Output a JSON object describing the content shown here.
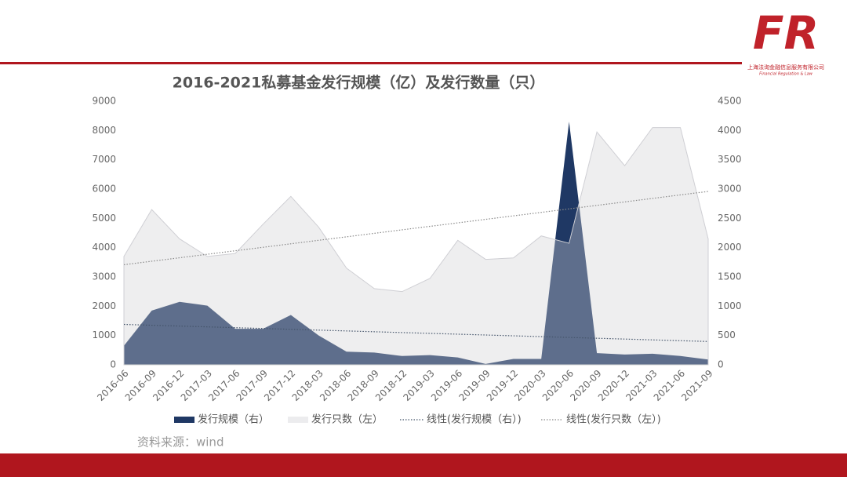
{
  "header": {
    "logo": "FR",
    "company": "上海法询金融信息服务有限公司",
    "company_en": "Financial Regulation & Law"
  },
  "chart_data": {
    "type": "area",
    "title": "2016-2021私募基金发行规模（亿）及发行数量（只）",
    "categories": [
      "2016-06",
      "2016-09",
      "2016-12",
      "2017-03",
      "2017-06",
      "2017-09",
      "2017-12",
      "2018-03",
      "2018-06",
      "2018-09",
      "2018-12",
      "2019-03",
      "2019-06",
      "2019-09",
      "2019-12",
      "2020-03",
      "2020-06",
      "2020-09",
      "2020-12",
      "2021-03",
      "2021-06",
      "2021-09"
    ],
    "series": [
      {
        "name": "发行规模（右）",
        "color": "#1f3864",
        "axis": "y2",
        "values": [
          325,
          925,
          1075,
          1010,
          615,
          615,
          850,
          500,
          225,
          210,
          150,
          165,
          125,
          15,
          100,
          100,
          4150,
          200,
          175,
          190,
          150,
          90
        ]
      },
      {
        "name": "发行只数（左）",
        "color": "#d0d0d4",
        "values": [
          3700,
          5300,
          4300,
          3700,
          3800,
          4800,
          5750,
          4700,
          3300,
          2600,
          2500,
          2950,
          4250,
          3600,
          3650,
          4400,
          4150,
          7950,
          6800,
          8100,
          8100,
          4300
        ]
      }
    ],
    "trend_names": [
      "线性(发行规模（右）)",
      "线性(发行只数（左）)"
    ],
    "ylim": [
      0,
      9000
    ],
    "yticks": [
      0,
      1000,
      2000,
      3000,
      4000,
      5000,
      6000,
      7000,
      8000,
      9000
    ],
    "y2lim": [
      0,
      4500
    ],
    "y2ticks": [
      0,
      500,
      1000,
      1500,
      2000,
      2500,
      3000,
      3500,
      4000,
      4500
    ],
    "grid": false,
    "legend": "bottom"
  },
  "footer": {
    "source": "资料来源：wind"
  }
}
